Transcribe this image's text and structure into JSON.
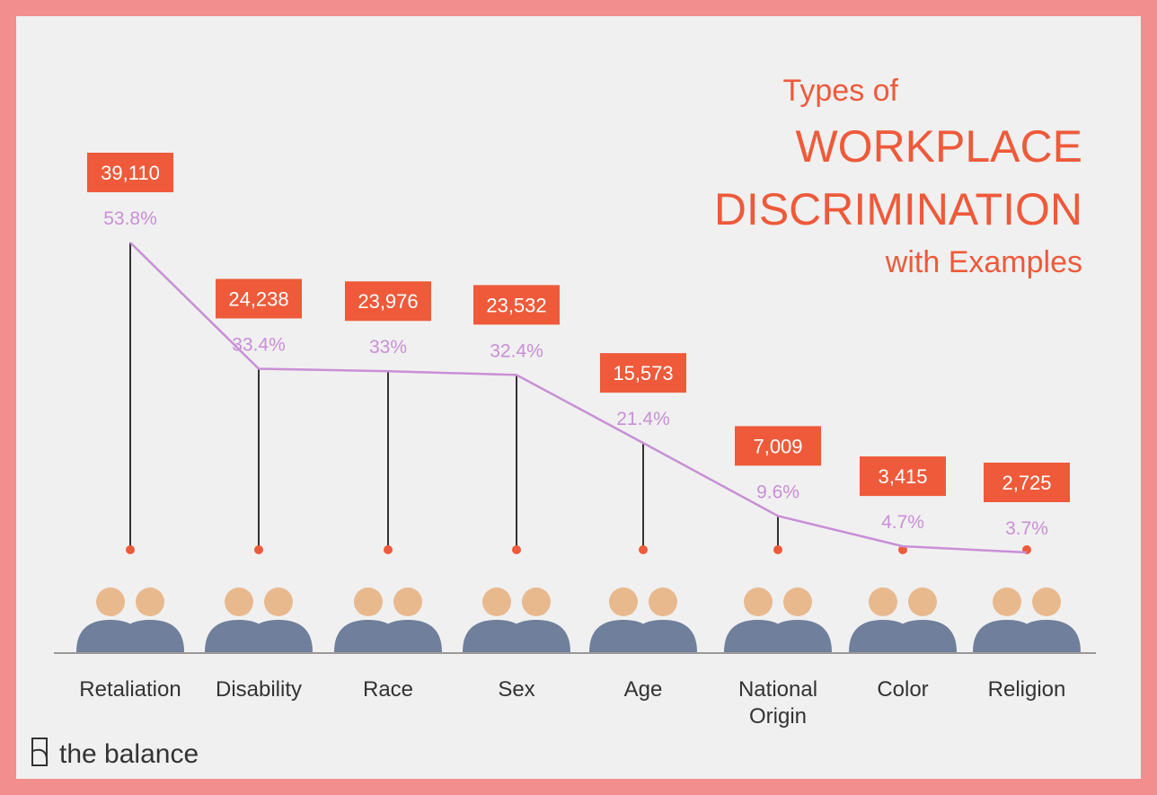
{
  "chart_data": {
    "type": "line",
    "title_lines": [
      "Types of",
      "WORKPLACE",
      "DISCRIMINATION",
      "with Examples"
    ],
    "categories": [
      "Retaliation",
      "Disability",
      "Race",
      "Sex",
      "Age",
      "National Origin",
      "Color",
      "Religion"
    ],
    "counts": [
      39110,
      24238,
      23976,
      23532,
      15573,
      7009,
      3415,
      2725
    ],
    "count_labels": [
      "39,110",
      "24,238",
      "23,976",
      "23,532",
      "15,573",
      "7,009",
      "3,415",
      "2,725"
    ],
    "values": [
      53.8,
      33.4,
      33,
      32.4,
      21.4,
      9.6,
      4.7,
      3.7
    ],
    "value_labels": [
      "53.8%",
      "33.4%",
      "33%",
      "32.4%",
      "21.4%",
      "9.6%",
      "4.7%",
      "3.7%"
    ],
    "color": "#c98fd6",
    "box_color": "#ee5a3a",
    "brand": "the balance"
  }
}
